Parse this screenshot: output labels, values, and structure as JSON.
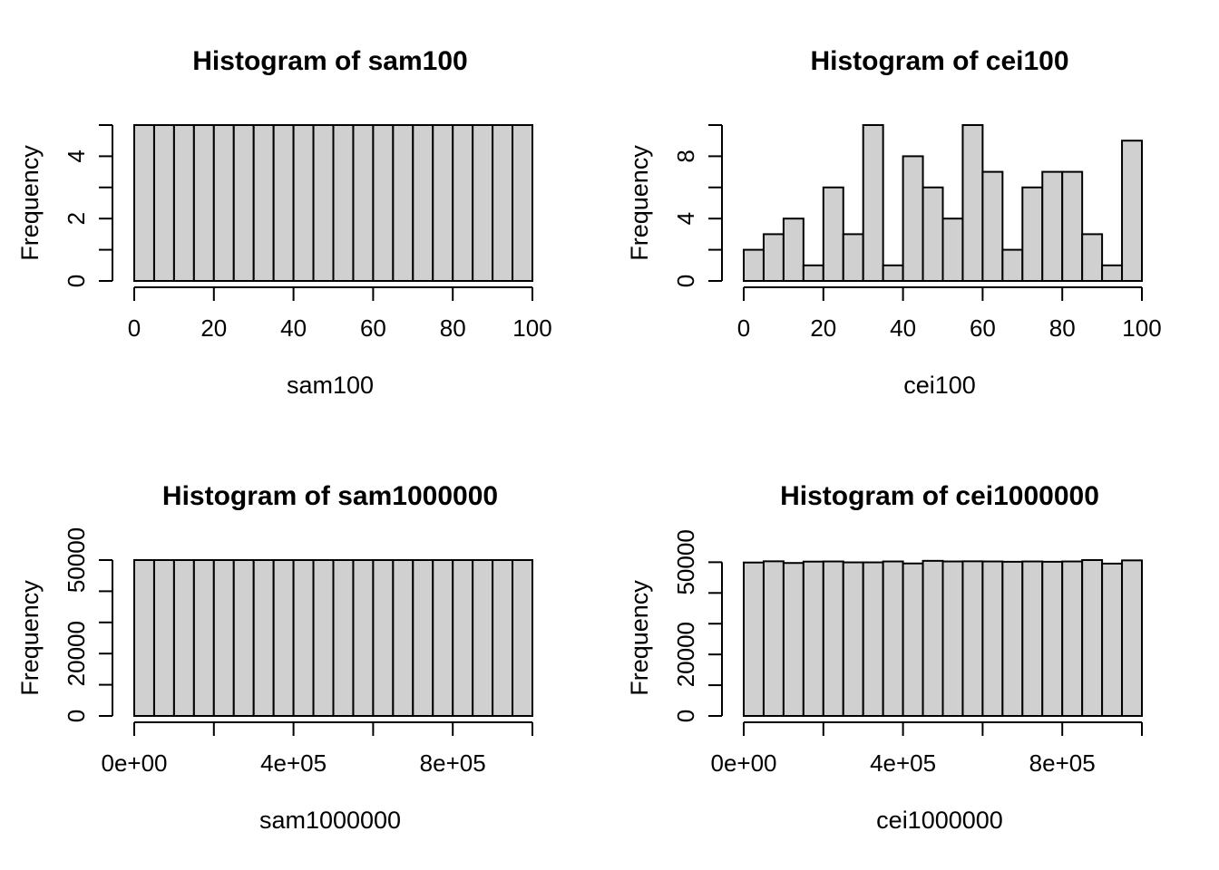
{
  "page": {
    "background": "#ffffff",
    "text_color": "#000000"
  },
  "style": {
    "bar_fill": "#d0d0d0",
    "bar_stroke": "#000000",
    "axis_color": "#000000"
  },
  "chart_data": [
    {
      "type": "bar",
      "id": "sam100",
      "title": "Histogram of sam100",
      "xlabel": "sam100",
      "ylabel": "Frequency",
      "bin_start": 0,
      "bin_width": 5,
      "counts": [
        5,
        5,
        5,
        5,
        5,
        5,
        5,
        5,
        5,
        5,
        5,
        5,
        5,
        5,
        5,
        5,
        5,
        5,
        5,
        5
      ],
      "x_domain": [
        0,
        100
      ],
      "x_ticks": [
        {
          "v": 0,
          "label": "0"
        },
        {
          "v": 20,
          "label": "20"
        },
        {
          "v": 40,
          "label": "40"
        },
        {
          "v": 60,
          "label": "60"
        },
        {
          "v": 80,
          "label": "80"
        },
        {
          "v": 100,
          "label": "100"
        }
      ],
      "y_scale_max": 5,
      "ylim": [
        0,
        5
      ],
      "y_ticks": [
        {
          "v": 0,
          "label": "0"
        },
        {
          "v": 1,
          "label": ""
        },
        {
          "v": 2,
          "label": "2"
        },
        {
          "v": 3,
          "label": ""
        },
        {
          "v": 4,
          "label": "4"
        },
        {
          "v": 5,
          "label": ""
        }
      ],
      "grid": false,
      "legend": "none"
    },
    {
      "type": "bar",
      "id": "cei100",
      "title": "Histogram of cei100",
      "xlabel": "cei100",
      "ylabel": "Frequency",
      "bin_start": 0,
      "bin_width": 5,
      "counts": [
        2,
        3,
        4,
        1,
        6,
        3,
        10,
        1,
        8,
        6,
        4,
        10,
        7,
        2,
        6,
        7,
        7,
        3,
        1,
        9
      ],
      "x_domain": [
        0,
        100
      ],
      "x_ticks": [
        {
          "v": 0,
          "label": "0"
        },
        {
          "v": 20,
          "label": "20"
        },
        {
          "v": 40,
          "label": "40"
        },
        {
          "v": 60,
          "label": "60"
        },
        {
          "v": 80,
          "label": "80"
        },
        {
          "v": 100,
          "label": "100"
        }
      ],
      "y_scale_max": 10,
      "ylim": [
        0,
        10
      ],
      "y_ticks": [
        {
          "v": 0,
          "label": "0"
        },
        {
          "v": 2,
          "label": ""
        },
        {
          "v": 4,
          "label": "4"
        },
        {
          "v": 6,
          "label": ""
        },
        {
          "v": 8,
          "label": "8"
        },
        {
          "v": 10,
          "label": ""
        }
      ],
      "grid": false,
      "legend": "none"
    },
    {
      "type": "bar",
      "id": "sam1000000",
      "title": "Histogram of sam1000000",
      "xlabel": "sam1000000",
      "ylabel": "Frequency",
      "bin_start": 0,
      "bin_width": 50000,
      "counts": [
        50000,
        50000,
        50000,
        50000,
        50000,
        50000,
        50000,
        50000,
        50000,
        50000,
        50000,
        50000,
        50000,
        50000,
        50000,
        50000,
        50000,
        50000,
        50000,
        50000
      ],
      "x_domain": [
        0,
        1000000
      ],
      "x_ticks": [
        {
          "v": 0,
          "label": "0e+00"
        },
        {
          "v": 200000,
          "label": ""
        },
        {
          "v": 400000,
          "label": "4e+05"
        },
        {
          "v": 600000,
          "label": ""
        },
        {
          "v": 800000,
          "label": "8e+05"
        },
        {
          "v": 1000000,
          "label": ""
        }
      ],
      "y_scale_max": 50000,
      "ylim": [
        0,
        50000
      ],
      "y_ticks": [
        {
          "v": 0,
          "label": "0"
        },
        {
          "v": 10000,
          "label": ""
        },
        {
          "v": 20000,
          "label": "20000"
        },
        {
          "v": 30000,
          "label": ""
        },
        {
          "v": 40000,
          "label": ""
        },
        {
          "v": 50000,
          "label": "50000"
        }
      ],
      "grid": false,
      "legend": "none"
    },
    {
      "type": "bar",
      "id": "cei1000000",
      "title": "Histogram of cei1000000",
      "xlabel": "cei1000000",
      "ylabel": "Frequency",
      "bin_start": 0,
      "bin_width": 50000,
      "counts": [
        49900,
        50300,
        49750,
        50200,
        50250,
        49950,
        49950,
        50250,
        49600,
        50450,
        50250,
        50300,
        50250,
        50150,
        50250,
        50150,
        50250,
        50700,
        49550,
        50600
      ],
      "x_domain": [
        0,
        1000000
      ],
      "x_ticks": [
        {
          "v": 0,
          "label": "0e+00"
        },
        {
          "v": 200000,
          "label": ""
        },
        {
          "v": 400000,
          "label": "4e+05"
        },
        {
          "v": 600000,
          "label": ""
        },
        {
          "v": 800000,
          "label": "8e+05"
        },
        {
          "v": 1000000,
          "label": ""
        }
      ],
      "y_scale_max": 50700,
      "ylim": [
        0,
        50700
      ],
      "y_ticks": [
        {
          "v": 0,
          "label": "0"
        },
        {
          "v": 10000,
          "label": ""
        },
        {
          "v": 20000,
          "label": "20000"
        },
        {
          "v": 30000,
          "label": ""
        },
        {
          "v": 40000,
          "label": ""
        },
        {
          "v": 50000,
          "label": "50000"
        }
      ],
      "grid": false,
      "legend": "none"
    }
  ]
}
